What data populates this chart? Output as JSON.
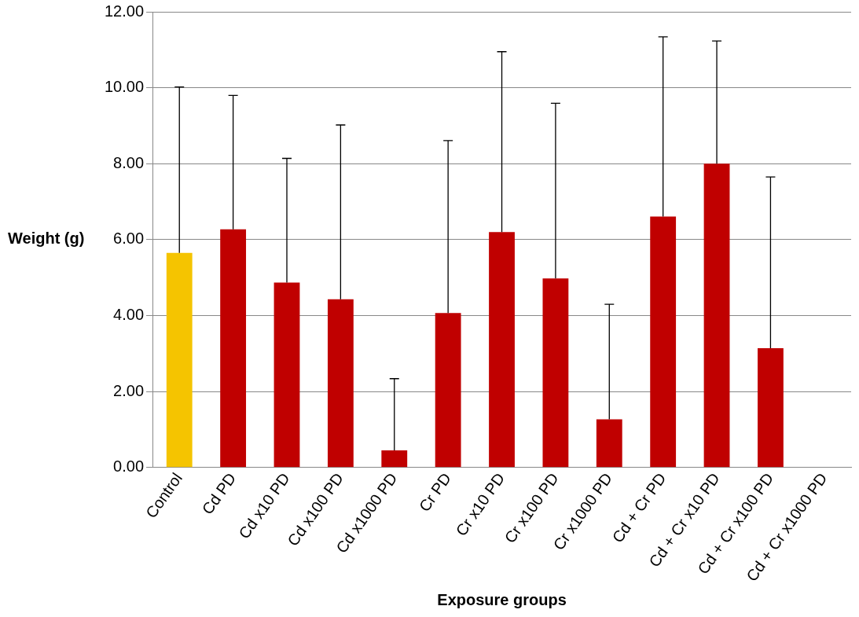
{
  "chart_data": {
    "type": "bar",
    "xlabel": "Exposure groups",
    "ylabel": "Weight (g)",
    "categories": [
      "Control",
      "Cd PD",
      "Cd x10 PD",
      "Cd x100 PD",
      "Cd x1000 PD",
      "Cr PD",
      "Cr x10 PD",
      "Cr x100 PD",
      "Cr x1000 PD",
      "Cd + Cr PD",
      "Cd + Cr x10 PD",
      "Cd + Cr x100 PD",
      "Cd + Cr x1000 PD"
    ],
    "values": [
      5.65,
      6.27,
      4.87,
      4.43,
      0.45,
      4.07,
      6.2,
      4.98,
      1.27,
      6.61,
      8.0,
      3.14,
      null
    ],
    "colors": [
      "#f5c400",
      "#c00000",
      "#c00000",
      "#c00000",
      "#c00000",
      "#c00000",
      "#c00000",
      "#c00000",
      "#c00000",
      "#c00000",
      "#c00000",
      "#c00000",
      "#c00000"
    ],
    "errors": [
      [
        5.65,
        10.02
      ],
      [
        6.27,
        9.8
      ],
      [
        4.87,
        8.14
      ],
      [
        4.43,
        9.02
      ],
      [
        0.45,
        2.34
      ],
      [
        4.07,
        8.61
      ],
      [
        6.2,
        10.95
      ],
      [
        4.98,
        9.59
      ],
      [
        1.27,
        4.3
      ],
      [
        6.61,
        11.34
      ],
      [
        8.0,
        11.23
      ],
      [
        3.14,
        7.65
      ],
      null
    ],
    "ylim": [
      0,
      12
    ],
    "yticks": [
      {
        "value": 0,
        "label": "0.00"
      },
      {
        "value": 2,
        "label": "2.00"
      },
      {
        "value": 4,
        "label": "4.00"
      },
      {
        "value": 6,
        "label": "6.00"
      },
      {
        "value": 8,
        "label": "8.00"
      },
      {
        "value": 10,
        "label": "10.00"
      },
      {
        "value": 12,
        "label": "12.00"
      }
    ],
    "grid": "y",
    "legend": false
  }
}
